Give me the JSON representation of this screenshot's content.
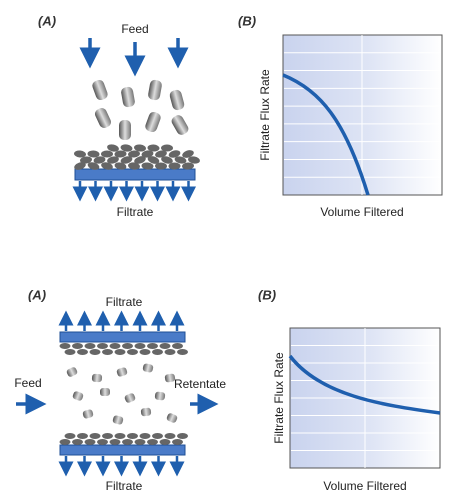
{
  "top": {
    "panel_a": {
      "label": "(A)",
      "feed": "Feed",
      "filtrate": "Filtrate"
    },
    "panel_b": {
      "label": "(B)",
      "y_axis": "Filtrate Flux Rate",
      "x_axis": "Volume Filtered"
    }
  },
  "bottom": {
    "panel_a": {
      "label": "(A)",
      "filtrate_top": "Filtrate",
      "feed": "Feed",
      "retentate": "Retentate",
      "filtrate_bottom": "Filtrate"
    },
    "panel_b": {
      "label": "(B)",
      "y_axis": "Filtrate Flux Rate",
      "x_axis": "Volume Filtered"
    }
  }
}
